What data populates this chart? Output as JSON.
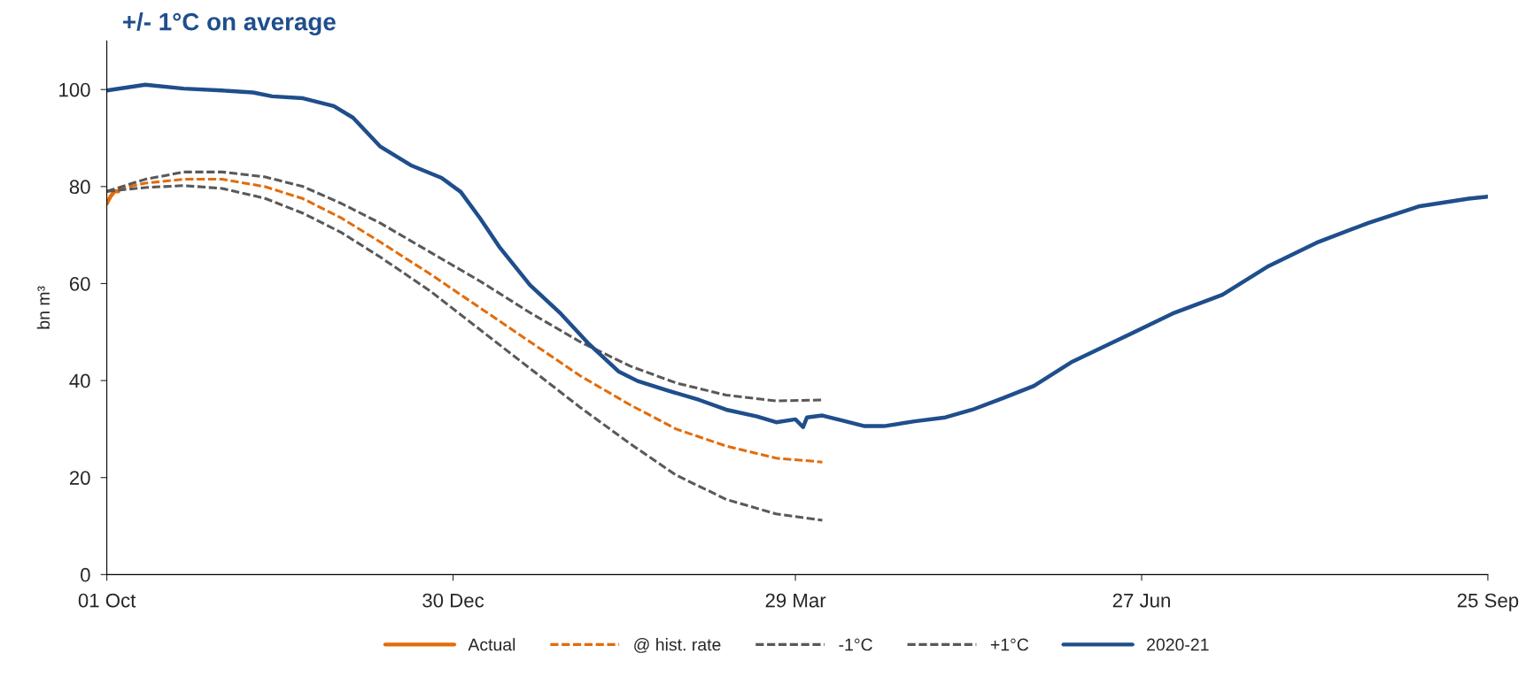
{
  "chart_data": {
    "type": "line",
    "title": "+/- 1°C on average",
    "ylabel": "bn m³",
    "xlim": [
      "2020-10-01",
      "2021-09-25"
    ],
    "xticks": [
      {
        "value": "2020-10-01",
        "label": "01 Oct"
      },
      {
        "value": "2020-12-30",
        "label": "30 Dec"
      },
      {
        "value": "2021-03-29",
        "label": "29 Mar"
      },
      {
        "value": "2021-06-27",
        "label": "27 Jun"
      },
      {
        "value": "2021-09-25",
        "label": "25 Sep"
      }
    ],
    "ylim": [
      0,
      110
    ],
    "yticks": [
      0,
      20,
      40,
      60,
      80,
      100
    ],
    "grid": false,
    "legend": "bottom",
    "marker": "none",
    "series": [
      {
        "name": "Actual",
        "color": "#e36c0a",
        "line_style": "solid",
        "x": [
          "2020-10-01",
          "2020-10-02",
          "2020-10-03",
          "2020-10-04"
        ],
        "values": [
          76.5,
          78,
          79,
          79
        ]
      },
      {
        "name": "@ hist. rate",
        "color": "#e36c0a",
        "line_style": "dashed",
        "x": [
          "2020-10-01",
          "2020-10-11",
          "2020-10-21",
          "2020-10-31",
          "2020-11-11",
          "2020-11-21",
          "2020-12-01",
          "2020-12-11",
          "2020-12-24",
          "2021-01-06",
          "2021-01-19",
          "2021-02-01",
          "2021-02-14",
          "2021-02-26",
          "2021-03-11",
          "2021-03-24",
          "2021-04-05"
        ],
        "values": [
          79,
          80.7,
          81.5,
          81.5,
          80,
          77.5,
          73.5,
          68.6,
          62,
          55,
          48,
          41,
          35,
          30,
          26.5,
          24,
          23.2
        ]
      },
      {
        "name": "-1°C",
        "color": "#595959",
        "line_style": "dashed",
        "x": [
          "2020-10-01",
          "2020-10-11",
          "2020-10-21",
          "2020-10-31",
          "2020-11-11",
          "2020-11-21",
          "2020-12-01",
          "2020-12-11",
          "2020-12-24",
          "2021-01-06",
          "2021-01-19",
          "2021-02-01",
          "2021-02-14",
          "2021-02-26",
          "2021-03-11",
          "2021-03-24",
          "2021-04-05"
        ],
        "values": [
          79,
          79.8,
          80.2,
          79.6,
          77.6,
          74.5,
          70.5,
          65.5,
          58.5,
          50.5,
          42.5,
          34.5,
          27,
          20.5,
          15.5,
          12.5,
          11.2
        ]
      },
      {
        "name": "+1°C",
        "color": "#595959",
        "line_style": "dashed",
        "x": [
          "2020-10-01",
          "2020-10-11",
          "2020-10-21",
          "2020-10-31",
          "2020-11-11",
          "2020-11-21",
          "2020-12-01",
          "2020-12-11",
          "2020-12-24",
          "2021-01-06",
          "2021-01-19",
          "2021-02-01",
          "2021-02-14",
          "2021-02-26",
          "2021-03-11",
          "2021-03-24",
          "2021-04-05"
        ],
        "values": [
          79,
          81.5,
          83,
          83,
          82,
          80,
          76.5,
          72.5,
          66.5,
          60.5,
          54,
          48,
          43,
          39.5,
          37,
          35.8,
          36
        ]
      },
      {
        "name": "2020-21",
        "color": "#1f4e8c",
        "line_style": "solid",
        "x": [
          "2020-10-01",
          "2020-10-06",
          "2020-10-11",
          "2020-10-21",
          "2020-10-31",
          "2020-11-08",
          "2020-11-13",
          "2020-11-21",
          "2020-11-29",
          "2020-12-04",
          "2020-12-11",
          "2020-12-19",
          "2020-12-27",
          "2021-01-01",
          "2021-01-06",
          "2021-01-11",
          "2021-01-19",
          "2021-01-27",
          "2021-02-03",
          "2021-02-11",
          "2021-02-16",
          "2021-02-24",
          "2021-03-04",
          "2021-03-11",
          "2021-03-19",
          "2021-03-24",
          "2021-03-29",
          "2021-03-31",
          "2021-04-01",
          "2021-04-05",
          "2021-04-11",
          "2021-04-16",
          "2021-04-21",
          "2021-04-29",
          "2021-05-07",
          "2021-05-14",
          "2021-05-22",
          "2021-05-30",
          "2021-06-09",
          "2021-06-22",
          "2021-07-05",
          "2021-07-18",
          "2021-07-30",
          "2021-08-12",
          "2021-08-25",
          "2021-09-07",
          "2021-09-20",
          "2021-09-25"
        ],
        "values": [
          99.8,
          100.4,
          101,
          100.2,
          99.8,
          99.4,
          98.6,
          98.2,
          96.6,
          94.2,
          88.3,
          84.4,
          81.8,
          78.9,
          73.5,
          67.6,
          59.7,
          53.8,
          47.8,
          41.9,
          39.9,
          37.9,
          36,
          34,
          32.6,
          31.4,
          32,
          30.4,
          32.4,
          32.8,
          31.6,
          30.6,
          30.6,
          31.6,
          32.4,
          34,
          36.4,
          38.9,
          43.9,
          48.8,
          53.8,
          57.7,
          63.6,
          68.6,
          72.5,
          75.9,
          77.5,
          77.9
        ]
      }
    ]
  }
}
